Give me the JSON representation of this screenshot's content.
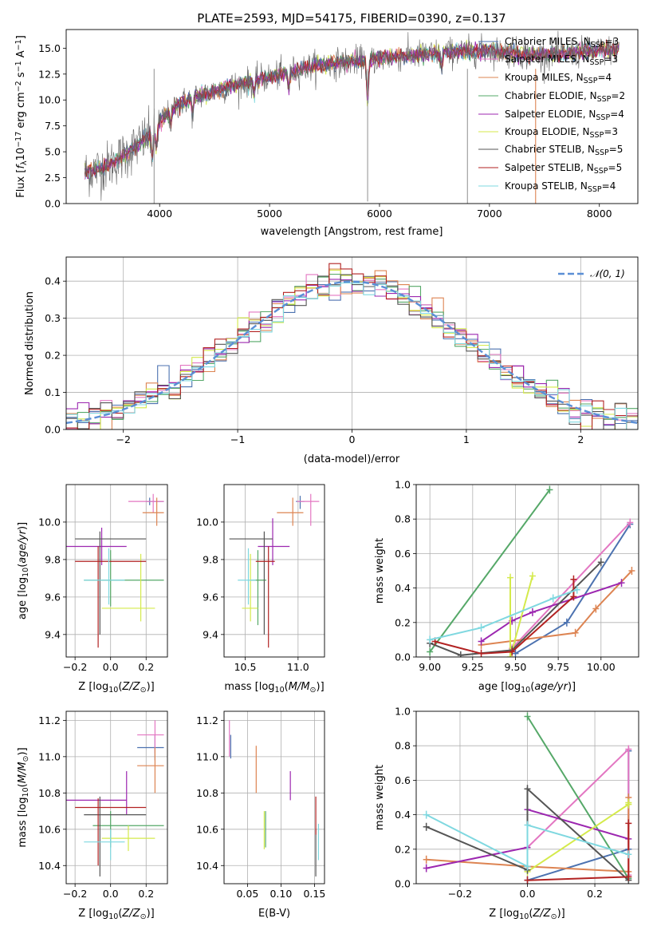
{
  "colors": {
    "series": [
      "#4c72b0",
      "#e377c2",
      "#dd8452",
      "#55a868",
      "#9c27b0",
      "#d4ea4b",
      "#555555",
      "#b22222",
      "#7fd8e0"
    ],
    "gauss": "#5b8fd6"
  },
  "chart_data": [
    {
      "id": "spectrum",
      "type": "line",
      "title": "PLATE=2593, MJD=54175, FIBERID=0390, z=0.137",
      "xlabel": "wavelength [Angstrom, rest frame]",
      "ylabel": "Flux [f_λ 10^-17 erg cm^-2 s^-1 A^-1]",
      "xlim": [
        3150,
        8350
      ],
      "ylim": [
        0,
        16.8
      ],
      "xticks": [
        4000,
        5000,
        6000,
        7000,
        8000
      ],
      "yticks": [
        0.0,
        2.5,
        5.0,
        7.5,
        10.0,
        12.5,
        15.0
      ],
      "xtick_labels": [
        "4000",
        "5000",
        "6000",
        "7000",
        "8000"
      ],
      "ytick_labels": [
        "0.0",
        "2.5",
        "5.0",
        "7.5",
        "10.0",
        "12.5",
        "15.0"
      ],
      "continuum": {
        "x": [
          3320,
          3500,
          3700,
          3900,
          4000,
          4150,
          4300,
          4600,
          5000,
          5400,
          5800,
          6200,
          6600,
          7000,
          7400,
          7800,
          8180
        ],
        "y": [
          3.0,
          3.5,
          4.8,
          6.5,
          7.8,
          9.5,
          10.2,
          11.2,
          12.2,
          13.3,
          13.8,
          14.2,
          14.6,
          14.8,
          14.3,
          14.6,
          14.9
        ]
      },
      "series_names": [
        "Chabrier MILES, N_SSP=3",
        "Salpeter MILES, N_SSP=3",
        "Kroupa MILES, N_SSP=4",
        "Chabrier ELODIE, N_SSP=2",
        "Salpeter ELODIE, N_SSP=4",
        "Kroupa ELODIE, N_SSP=3",
        "Chabrier STELIB, N_SSP=5",
        "Salpeter STELIB, N_SSP=5",
        "Kroupa STELIB, N_SSP=4"
      ],
      "legend": "upper right"
    },
    {
      "id": "residuals",
      "type": "histogram",
      "xlabel": "(data-model)/error",
      "ylabel": "Normed distribution",
      "xlim": [
        -2.5,
        2.5
      ],
      "ylim": [
        0,
        0.465
      ],
      "xticks": [
        -2,
        -1,
        0,
        1,
        2
      ],
      "xtick_labels": [
        "−2",
        "−1",
        "0",
        "1",
        "2"
      ],
      "yticks": [
        0.0,
        0.1,
        0.2,
        0.3,
        0.4
      ],
      "ytick_labels": [
        "0.0",
        "0.1",
        "0.2",
        "0.3",
        "0.4"
      ],
      "bin_width": 0.1,
      "reference_curve": "𝒩(0, 1)",
      "legend": "upper right",
      "grid": true
    },
    {
      "id": "z_age",
      "type": "errorbar",
      "xlabel": "Z [log10(Z/Z⊙)]",
      "ylabel": "age [log10(age/yr)]",
      "xlim": [
        -0.25,
        0.32
      ],
      "ylim": [
        9.28,
        10.2
      ],
      "xticks": [
        -0.2,
        0.0,
        0.2
      ],
      "xtick_labels": [
        "−0.2",
        "0.0",
        "0.2"
      ],
      "yticks": [
        9.4,
        9.6,
        9.8,
        10.0
      ],
      "ytick_labels": [
        "9.4",
        "9.6",
        "9.8",
        "10.0"
      ],
      "points": [
        {
          "s": 0,
          "x": 0.22,
          "y": 10.11,
          "xe": [
            0.2,
            0.3
          ],
          "ye": [
            10.09,
            10.13
          ]
        },
        {
          "s": 1,
          "x": 0.24,
          "y": 10.11,
          "xe": [
            0.1,
            0.3
          ],
          "ye": [
            10.05,
            10.15
          ]
        },
        {
          "s": 2,
          "x": 0.26,
          "y": 10.05,
          "xe": [
            0.18,
            0.3
          ],
          "ye": [
            9.98,
            10.13
          ]
        },
        {
          "s": 3,
          "x": 0.0,
          "y": 9.69,
          "xe": [
            -0.15,
            0.3
          ],
          "ye": [
            9.55,
            9.85
          ]
        },
        {
          "s": 4,
          "x": -0.05,
          "y": 9.87,
          "xe": [
            -0.3,
            0.09
          ],
          "ye": [
            9.77,
            9.97
          ]
        },
        {
          "s": 5,
          "x": 0.17,
          "y": 9.54,
          "xe": [
            -0.05,
            0.25
          ],
          "ye": [
            9.47,
            9.83
          ]
        },
        {
          "s": 6,
          "x": -0.06,
          "y": 9.91,
          "xe": [
            -0.2,
            0.2
          ],
          "ye": [
            9.4,
            9.95
          ]
        },
        {
          "s": 7,
          "x": -0.07,
          "y": 9.79,
          "xe": [
            -0.2,
            0.2
          ],
          "ye": [
            9.33,
            9.87
          ]
        },
        {
          "s": 8,
          "x": -0.01,
          "y": 9.69,
          "xe": [
            -0.15,
            0.08
          ],
          "ye": [
            9.56,
            9.86
          ]
        }
      ]
    },
    {
      "id": "mass_age",
      "type": "errorbar",
      "xlabel": "mass [log10(M/M⊙)]",
      "ylabel": "",
      "xlim": [
        10.3,
        11.25
      ],
      "ylim": [
        9.28,
        10.2
      ],
      "xticks": [
        10.5,
        11.0
      ],
      "xtick_labels": [
        "10.5",
        "11.0"
      ],
      "yticks": [
        9.4,
        9.6,
        9.8,
        10.0
      ],
      "ytick_labels": [
        "9.4",
        "9.6",
        "9.8",
        "10.0"
      ],
      "points": [
        {
          "s": 0,
          "x": 11.02,
          "y": 10.11,
          "xe": [
            10.98,
            11.06
          ],
          "ye": [
            10.07,
            10.14
          ]
        },
        {
          "s": 1,
          "x": 11.12,
          "y": 10.11,
          "xe": [
            10.99,
            11.2
          ],
          "ye": [
            9.98,
            10.15
          ]
        },
        {
          "s": 2,
          "x": 10.95,
          "y": 10.05,
          "xe": [
            10.8,
            11.05
          ],
          "ye": [
            9.98,
            10.13
          ]
        },
        {
          "s": 3,
          "x": 10.62,
          "y": 9.69,
          "xe": [
            10.55,
            10.7
          ],
          "ye": [
            9.45,
            9.85
          ]
        },
        {
          "s": 4,
          "x": 10.76,
          "y": 9.87,
          "xe": [
            10.62,
            10.92
          ],
          "ye": [
            9.77,
            10.02
          ]
        },
        {
          "s": 5,
          "x": 10.55,
          "y": 9.54,
          "xe": [
            10.47,
            10.62
          ],
          "ye": [
            9.47,
            9.83
          ]
        },
        {
          "s": 6,
          "x": 10.68,
          "y": 9.91,
          "xe": [
            10.35,
            10.76
          ],
          "ye": [
            9.4,
            9.95
          ]
        },
        {
          "s": 7,
          "x": 10.72,
          "y": 9.79,
          "xe": [
            10.6,
            10.78
          ],
          "ye": [
            9.33,
            9.87
          ]
        },
        {
          "s": 8,
          "x": 10.53,
          "y": 9.69,
          "xe": [
            10.43,
            10.6
          ],
          "ye": [
            9.56,
            9.86
          ]
        }
      ]
    },
    {
      "id": "weight_age",
      "type": "line",
      "xlabel": "age [log10(age/yr)]",
      "ylabel": "mass weight",
      "xlim": [
        8.92,
        10.22
      ],
      "ylim": [
        0,
        1.0
      ],
      "xticks": [
        9.0,
        9.25,
        9.5,
        9.75,
        10.0
      ],
      "xtick_labels": [
        "9.00",
        "9.25",
        "9.50",
        "9.75",
        "10.00"
      ],
      "yticks": [
        0.0,
        0.2,
        0.4,
        0.6,
        0.8,
        1.0
      ],
      "ytick_labels": [
        "0.0",
        "0.2",
        "0.4",
        "0.6",
        "0.8",
        "1.0"
      ],
      "series": [
        {
          "s": 0,
          "x": [
            9.5,
            9.8,
            10.17
          ],
          "y": [
            0.02,
            0.2,
            0.77
          ]
        },
        {
          "s": 1,
          "x": [
            9.48,
            10.17
          ],
          "y": [
            0.05,
            0.78
          ]
        },
        {
          "s": 2,
          "x": [
            9.3,
            9.85,
            9.97,
            10.18
          ],
          "y": [
            0.07,
            0.14,
            0.28,
            0.5
          ]
        },
        {
          "s": 3,
          "x": [
            9.0,
            9.7
          ],
          "y": [
            0.03,
            0.97
          ]
        },
        {
          "s": 4,
          "x": [
            9.3,
            9.48,
            9.6,
            10.12
          ],
          "y": [
            0.09,
            0.21,
            0.26,
            0.43
          ]
        },
        {
          "s": 5,
          "x": [
            9.47,
            9.47,
            9.6
          ],
          "y": [
            0.46,
            0.0,
            0.47
          ]
        },
        {
          "s": 6,
          "x": [
            9.0,
            9.18,
            9.48,
            10.0
          ],
          "y": [
            0.08,
            0.01,
            0.04,
            0.55
          ]
        },
        {
          "s": 7,
          "x": [
            9.03,
            9.3,
            9.48,
            9.84,
            9.84
          ],
          "y": [
            0.09,
            0.02,
            0.03,
            0.35,
            0.45
          ]
        },
        {
          "s": 8,
          "x": [
            9.0,
            9.3,
            9.72,
            9.86
          ],
          "y": [
            0.1,
            0.17,
            0.34,
            0.39
          ]
        }
      ]
    },
    {
      "id": "z_mass",
      "type": "errorbar",
      "xlabel": "Z [log10(Z/Z⊙)]",
      "ylabel": "mass [log10(M/M⊙)]",
      "xlim": [
        -0.25,
        0.32
      ],
      "ylim": [
        10.3,
        11.25
      ],
      "xticks": [
        -0.2,
        0.0,
        0.2
      ],
      "xtick_labels": [
        "−0.2",
        "0.0",
        "0.2"
      ],
      "yticks": [
        10.4,
        10.6,
        10.8,
        11.0,
        11.2
      ],
      "ytick_labels": [
        "10.4",
        "10.6",
        "10.8",
        "11.0",
        "11.2"
      ],
      "points": [
        {
          "s": 0,
          "x": 0.25,
          "y": 11.05,
          "xe": [
            0.15,
            0.3
          ],
          "ye": [
            10.98,
            11.12
          ]
        },
        {
          "s": 1,
          "x": 0.25,
          "y": 11.12,
          "xe": [
            0.15,
            0.3
          ],
          "ye": [
            11.02,
            11.2
          ]
        },
        {
          "s": 2,
          "x": 0.25,
          "y": 10.95,
          "xe": [
            0.15,
            0.3
          ],
          "ye": [
            10.8,
            11.05
          ]
        },
        {
          "s": 3,
          "x": 0.0,
          "y": 10.62,
          "xe": [
            -0.1,
            0.3
          ],
          "ye": [
            10.5,
            10.7
          ]
        },
        {
          "s": 4,
          "x": 0.09,
          "y": 10.76,
          "xe": [
            -0.3,
            0.09
          ],
          "ye": [
            10.68,
            10.92
          ]
        },
        {
          "s": 5,
          "x": 0.1,
          "y": 10.55,
          "xe": [
            -0.05,
            0.25
          ],
          "ye": [
            10.48,
            10.62
          ]
        },
        {
          "s": 6,
          "x": -0.06,
          "y": 10.68,
          "xe": [
            -0.15,
            0.2
          ],
          "ye": [
            10.34,
            10.78
          ]
        },
        {
          "s": 7,
          "x": -0.07,
          "y": 10.72,
          "xe": [
            -0.2,
            0.2
          ],
          "ye": [
            10.4,
            10.77
          ]
        },
        {
          "s": 8,
          "x": 0.0,
          "y": 10.53,
          "xe": [
            -0.15,
            0.08
          ],
          "ye": [
            10.43,
            10.6
          ]
        }
      ]
    },
    {
      "id": "ebv_mass",
      "type": "errorbar",
      "xlabel": "E(B-V)",
      "ylabel": "",
      "xlim": [
        0.015,
        0.165
      ],
      "ylim": [
        10.3,
        11.25
      ],
      "xticks": [
        0.05,
        0.1,
        0.15
      ],
      "xtick_labels": [
        "0.05",
        "0.10",
        "0.15"
      ],
      "yticks": [
        10.4,
        10.6,
        10.8,
        11.0,
        11.2
      ],
      "ytick_labels": [
        "10.4",
        "10.6",
        "10.8",
        "11.0",
        "11.2"
      ],
      "points": [
        {
          "s": 0,
          "x": 0.025,
          "y": 11.05,
          "xe": [
            0.025,
            0.025
          ],
          "ye": [
            10.99,
            11.12
          ]
        },
        {
          "s": 1,
          "x": 0.023,
          "y": 11.12,
          "xe": [
            0.023,
            0.023
          ],
          "ye": [
            11.0,
            11.2
          ]
        },
        {
          "s": 2,
          "x": 0.063,
          "y": 10.95,
          "xe": [
            0.063,
            0.063
          ],
          "ye": [
            10.8,
            11.06
          ]
        },
        {
          "s": 3,
          "x": 0.077,
          "y": 10.62,
          "xe": [
            0.077,
            0.077
          ],
          "ye": [
            10.5,
            10.7
          ]
        },
        {
          "s": 4,
          "x": 0.114,
          "y": 10.84,
          "xe": [
            0.114,
            0.114
          ],
          "ye": [
            10.76,
            10.92
          ]
        },
        {
          "s": 5,
          "x": 0.075,
          "y": 10.6,
          "xe": [
            0.075,
            0.075
          ],
          "ye": [
            10.49,
            10.7
          ]
        },
        {
          "s": 6,
          "x": 0.152,
          "y": 10.5,
          "xe": [
            0.152,
            0.152
          ],
          "ye": [
            10.34,
            10.6
          ]
        },
        {
          "s": 7,
          "x": 0.152,
          "y": 10.66,
          "xe": [
            0.152,
            0.152
          ],
          "ye": [
            10.57,
            10.78
          ]
        },
        {
          "s": 8,
          "x": 0.156,
          "y": 10.53,
          "xe": [
            0.156,
            0.156
          ],
          "ye": [
            10.43,
            10.63
          ]
        }
      ]
    },
    {
      "id": "weight_z",
      "type": "line",
      "xlabel": "Z [log10(Z/Z⊙)]",
      "ylabel": "mass weight",
      "xlim": [
        -0.33,
        0.33
      ],
      "ylim": [
        0,
        1.0
      ],
      "xticks": [
        -0.2,
        0.0,
        0.2
      ],
      "xtick_labels": [
        "−0.2",
        "0.0",
        "0.2"
      ],
      "yticks": [
        0.0,
        0.2,
        0.4,
        0.6,
        0.8,
        1.0
      ],
      "ytick_labels": [
        "0.0",
        "0.2",
        "0.4",
        "0.6",
        "0.8",
        "1.0"
      ],
      "series": [
        {
          "s": 0,
          "x": [
            0.0,
            0.3,
            0.3
          ],
          "y": [
            0.02,
            0.2,
            0.77
          ]
        },
        {
          "s": 1,
          "x": [
            0.0,
            0.3,
            0.3
          ],
          "y": [
            0.21,
            0.78,
            0.05
          ]
        },
        {
          "s": 2,
          "x": [
            -0.3,
            0.0,
            0.3,
            0.3
          ],
          "y": [
            0.14,
            0.1,
            0.07,
            0.5
          ]
        },
        {
          "s": 3,
          "x": [
            0.0,
            0.3
          ],
          "y": [
            0.97,
            0.03
          ]
        },
        {
          "s": 4,
          "x": [
            -0.3,
            0.0,
            0.0,
            0.3
          ],
          "y": [
            0.09,
            0.21,
            0.43,
            0.26
          ]
        },
        {
          "s": 5,
          "x": [
            0.0,
            0.3,
            0.3
          ],
          "y": [
            0.07,
            0.46,
            0.47
          ]
        },
        {
          "s": 6,
          "x": [
            -0.3,
            0.0,
            0.0,
            0.3
          ],
          "y": [
            0.33,
            0.08,
            0.55,
            0.02
          ]
        },
        {
          "s": 7,
          "x": [
            0.0,
            0.3,
            0.3
          ],
          "y": [
            0.02,
            0.04,
            0.35
          ]
        },
        {
          "s": 8,
          "x": [
            -0.3,
            0.0,
            0.0,
            0.3
          ],
          "y": [
            0.4,
            0.1,
            0.34,
            0.17
          ]
        }
      ]
    }
  ]
}
